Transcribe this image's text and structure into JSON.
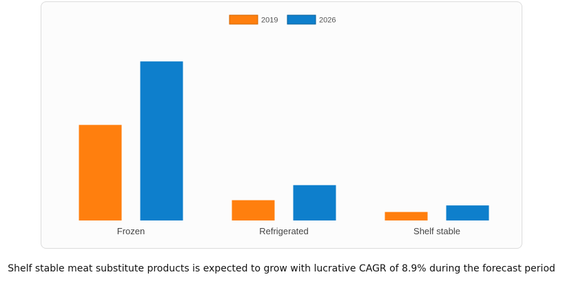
{
  "chart_data": {
    "type": "bar",
    "categories": [
      "Frozen",
      "Refrigerated",
      "Shelf stable"
    ],
    "series": [
      {
        "name": "2019",
        "color": "#ff7f0e",
        "values": [
          146,
          31,
          13
        ]
      },
      {
        "name": "2026",
        "color": "#0e7fcc",
        "values": [
          243,
          54,
          23
        ]
      }
    ],
    "ylim": [
      0,
      260
    ],
    "legend_position": "top-center",
    "grid": false,
    "xlabel": "",
    "ylabel": ""
  },
  "caption": "Shelf stable meat substitute products is expected to grow with lucrative CAGR of 8.9% during the forecast period"
}
